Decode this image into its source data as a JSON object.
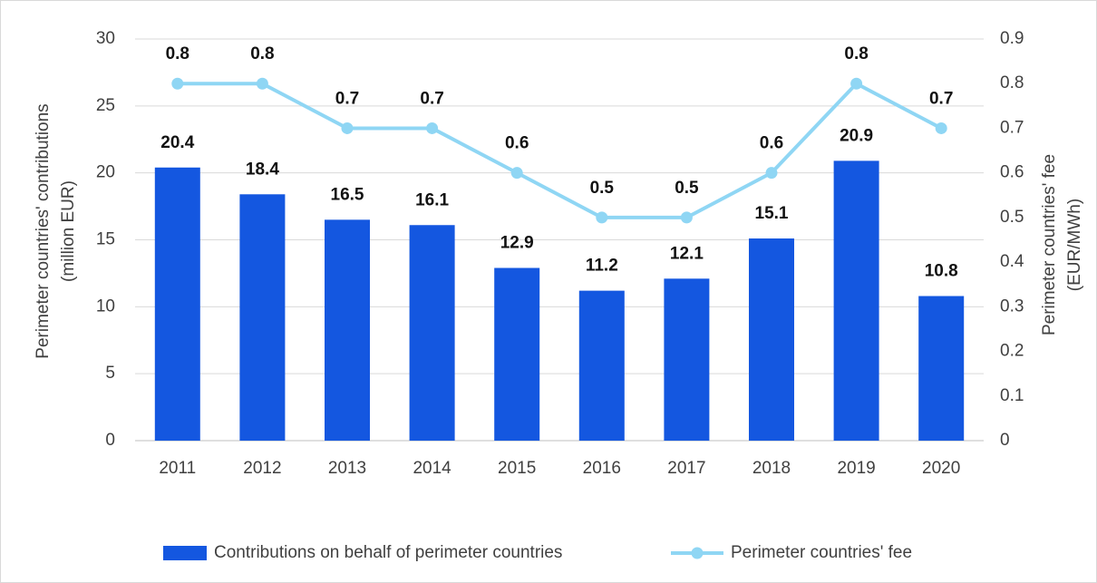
{
  "chart_data": {
    "type": "bar_line",
    "categories": [
      "2011",
      "2012",
      "2013",
      "2014",
      "2015",
      "2016",
      "2017",
      "2018",
      "2019",
      "2020"
    ],
    "series": [
      {
        "name": "Contributions on behalf of perimeter countries",
        "type": "bar",
        "color": "#1457e0",
        "axis": "y",
        "values": [
          20.4,
          18.4,
          16.5,
          16.1,
          12.9,
          11.2,
          12.1,
          15.1,
          20.9,
          10.8
        ]
      },
      {
        "name": "Perimeter countries' fee",
        "type": "line",
        "color": "#8fd6f4",
        "axis": "y2",
        "values": [
          0.8,
          0.8,
          0.7,
          0.7,
          0.6,
          0.5,
          0.5,
          0.6,
          0.8,
          0.7
        ]
      }
    ],
    "ylabel": [
      "Perimeter countries' contributions",
      "(million EUR)"
    ],
    "y2label": [
      "Perimeter countries' fee",
      "(EUR/MWh)"
    ],
    "ylim": [
      0,
      30
    ],
    "yticks": [
      0,
      5,
      10,
      15,
      20,
      25,
      30
    ],
    "y2lim": [
      0,
      0.9
    ],
    "y2ticks": [
      0,
      0.1,
      0.2,
      0.3,
      0.4,
      0.5,
      0.6,
      0.7,
      0.8,
      0.9
    ],
    "grid": true,
    "legend": "bottom"
  }
}
